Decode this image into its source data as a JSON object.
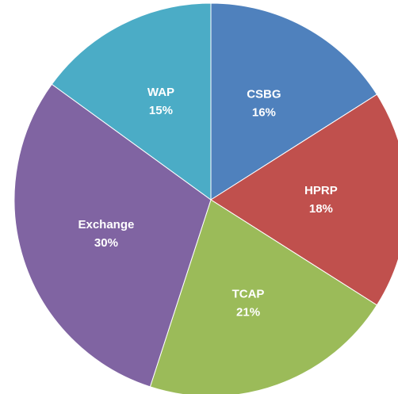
{
  "chart_data": {
    "type": "pie",
    "categories": [
      "CSBG",
      "HPRP",
      "TCAP",
      "Exchange",
      "WAP"
    ],
    "values": [
      16,
      18,
      21,
      30,
      15
    ],
    "value_labels": [
      "16%",
      "18%",
      "21%",
      "30%",
      "15%"
    ],
    "colors": [
      "#4f81bd",
      "#c0504d",
      "#9bbb59",
      "#8064a2",
      "#4bacc6"
    ]
  }
}
